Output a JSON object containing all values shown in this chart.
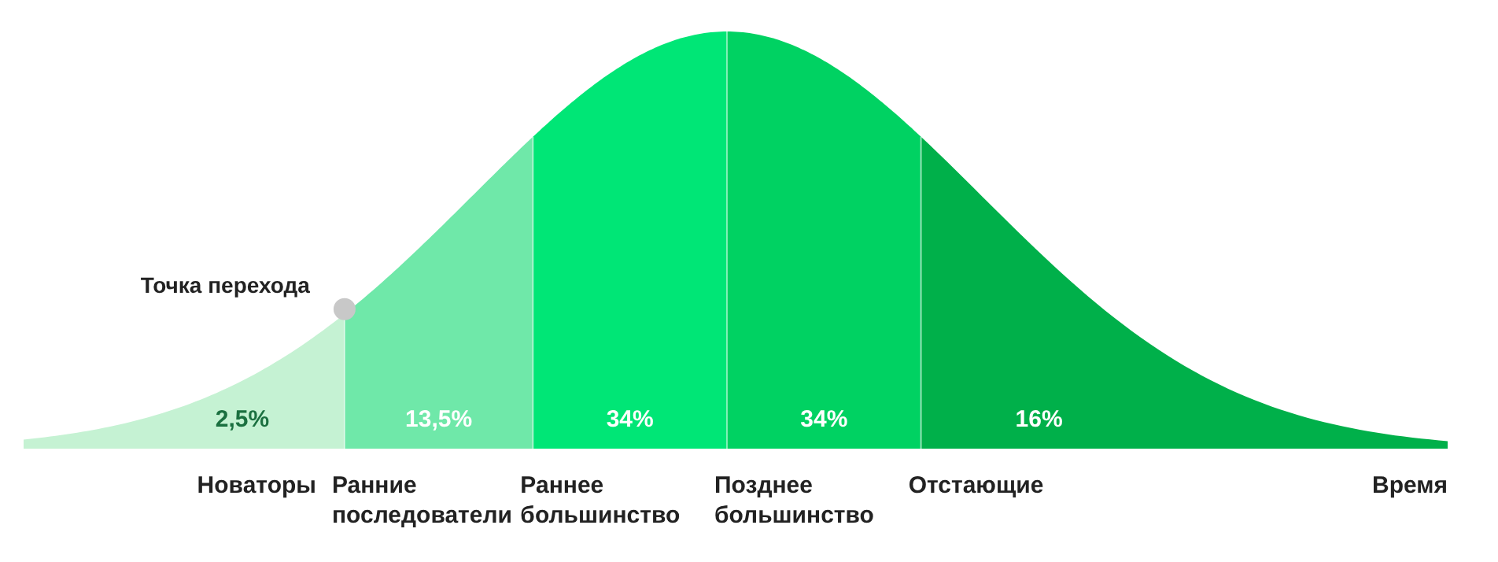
{
  "chart_data": {
    "type": "other",
    "categories": [
      "Новаторы",
      "Ранние последователи",
      "Раннее большинство",
      "Позднее большинство",
      "Отстающие"
    ],
    "values": [
      2.5,
      13.5,
      34,
      34,
      16
    ],
    "value_labels": [
      "2,5%",
      "13,5%",
      "34%",
      "34%",
      "16%"
    ],
    "colors": [
      "#c5f2d3",
      "#6fe8a9",
      "#00e676",
      "#00d262",
      "#00b04a"
    ],
    "xlabel": "Время",
    "annotations": [
      "Точка перехода"
    ]
  }
}
